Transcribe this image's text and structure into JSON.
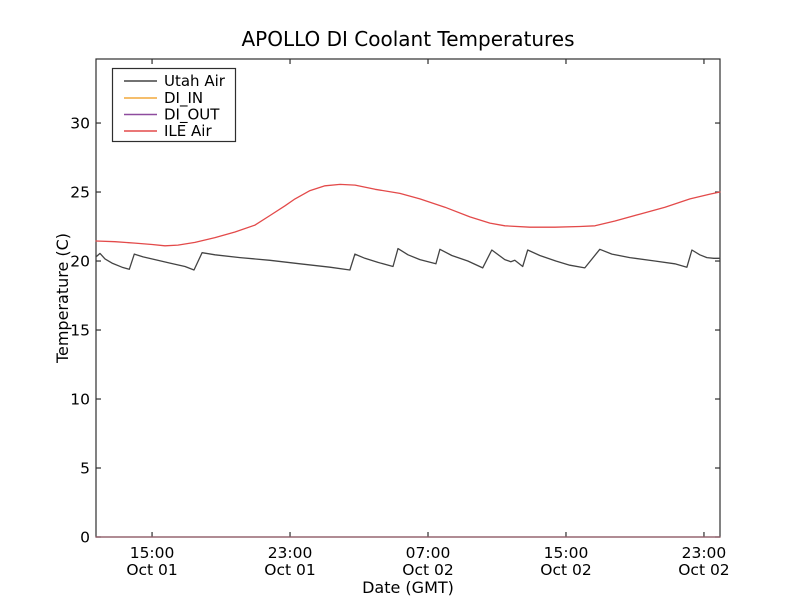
{
  "figure": {
    "title": "APOLLO DI Coolant Temperatures",
    "xlabel": "Date (GMT)",
    "ylabel": "Temperature (C)"
  },
  "colors": {
    "frame": "#2e2e2e",
    "utah_air": "#444444",
    "di_in": "#f2a93b",
    "di_out": "#8e4b9e",
    "ile_air": "#e34a4a",
    "background": "#ffffff"
  },
  "chart_data": {
    "type": "line",
    "title": "APOLLO DI Coolant Temperatures",
    "xlabel": "Date (GMT)",
    "ylabel": "Temperature (C)",
    "x_unit": "hours since Oct 01 00:00 GMT",
    "xlim": [
      11.75,
      47.93
    ],
    "ylim": [
      0,
      34.64
    ],
    "grid": false,
    "legend_position": "upper left",
    "yticks": [
      0,
      5,
      10,
      15,
      20,
      25,
      30
    ],
    "xticks": [
      {
        "t": 15,
        "line1": "15:00",
        "line2": "Oct 01"
      },
      {
        "t": 23,
        "line1": "23:00",
        "line2": "Oct 01"
      },
      {
        "t": 31,
        "line1": "07:00",
        "line2": "Oct 02"
      },
      {
        "t": 39,
        "line1": "15:00",
        "line2": "Oct 02"
      },
      {
        "t": 47,
        "line1": "23:00",
        "line2": "Oct 02"
      }
    ],
    "series": [
      {
        "name": "Utah Air",
        "color": "#444444",
        "points": [
          [
            11.75,
            20.3
          ],
          [
            11.98,
            20.55
          ],
          [
            12.27,
            20.15
          ],
          [
            12.68,
            19.85
          ],
          [
            13.26,
            19.55
          ],
          [
            13.68,
            19.4
          ],
          [
            13.97,
            20.5
          ],
          [
            14.48,
            20.3
          ],
          [
            15.17,
            20.1
          ],
          [
            16.04,
            19.85
          ],
          [
            16.91,
            19.6
          ],
          [
            17.43,
            19.35
          ],
          [
            17.9,
            20.6
          ],
          [
            18.65,
            20.45
          ],
          [
            20.1,
            20.25
          ],
          [
            21.84,
            20.05
          ],
          [
            23.58,
            19.8
          ],
          [
            25.31,
            19.55
          ],
          [
            26.47,
            19.35
          ],
          [
            26.76,
            20.5
          ],
          [
            27.34,
            20.2
          ],
          [
            28.1,
            19.9
          ],
          [
            28.97,
            19.6
          ],
          [
            29.26,
            20.9
          ],
          [
            29.84,
            20.45
          ],
          [
            30.53,
            20.1
          ],
          [
            31.46,
            19.8
          ],
          [
            31.69,
            20.85
          ],
          [
            32.38,
            20.4
          ],
          [
            33.31,
            20.0
          ],
          [
            34.17,
            19.5
          ],
          [
            34.7,
            20.8
          ],
          [
            35.45,
            20.1
          ],
          [
            35.8,
            19.95
          ],
          [
            36.03,
            20.05
          ],
          [
            36.49,
            19.6
          ],
          [
            36.78,
            20.8
          ],
          [
            37.48,
            20.4
          ],
          [
            38.41,
            20.0
          ],
          [
            39.22,
            19.7
          ],
          [
            40.09,
            19.5
          ],
          [
            40.96,
            20.85
          ],
          [
            41.66,
            20.5
          ],
          [
            42.7,
            20.25
          ],
          [
            44.15,
            20.0
          ],
          [
            45.31,
            19.8
          ],
          [
            46.01,
            19.55
          ],
          [
            46.3,
            20.8
          ],
          [
            46.76,
            20.45
          ],
          [
            47.17,
            20.25
          ],
          [
            47.57,
            20.2
          ],
          [
            47.93,
            20.2
          ]
        ]
      },
      {
        "name": "DI_IN",
        "color": "#f2a93b",
        "points": [
          [
            11.75,
            0.0
          ],
          [
            47.93,
            0.0
          ]
        ]
      },
      {
        "name": "DI_OUT",
        "color": "#8e4b9e",
        "points": [
          [
            11.75,
            0.0
          ],
          [
            47.93,
            0.0
          ]
        ]
      },
      {
        "name": "ILE Air",
        "color": "#e34a4a",
        "points": [
          [
            11.75,
            21.45
          ],
          [
            12.85,
            21.4
          ],
          [
            14.01,
            21.3
          ],
          [
            15.0,
            21.2
          ],
          [
            15.75,
            21.1
          ],
          [
            16.5,
            21.15
          ],
          [
            17.49,
            21.35
          ],
          [
            18.65,
            21.7
          ],
          [
            19.81,
            22.1
          ],
          [
            20.97,
            22.6
          ],
          [
            21.84,
            23.3
          ],
          [
            22.71,
            24.0
          ],
          [
            23.29,
            24.5
          ],
          [
            24.16,
            25.1
          ],
          [
            25.03,
            25.45
          ],
          [
            25.9,
            25.55
          ],
          [
            26.77,
            25.5
          ],
          [
            27.93,
            25.2
          ],
          [
            29.37,
            24.9
          ],
          [
            30.53,
            24.5
          ],
          [
            31.98,
            23.9
          ],
          [
            33.43,
            23.2
          ],
          [
            34.59,
            22.75
          ],
          [
            35.46,
            22.55
          ],
          [
            36.91,
            22.45
          ],
          [
            38.36,
            22.45
          ],
          [
            39.81,
            22.5
          ],
          [
            40.68,
            22.55
          ],
          [
            41.84,
            22.9
          ],
          [
            43.29,
            23.4
          ],
          [
            44.74,
            23.9
          ],
          [
            46.19,
            24.5
          ],
          [
            47.35,
            24.85
          ],
          [
            47.93,
            25.0
          ]
        ]
      }
    ]
  }
}
